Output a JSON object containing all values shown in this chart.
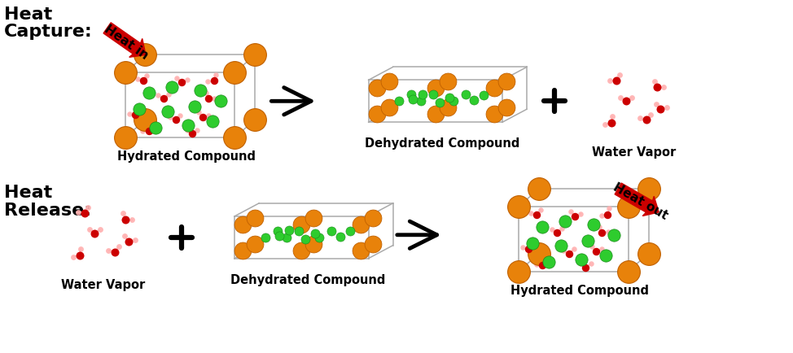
{
  "bg_color": "#ffffff",
  "orange_color": "#E8820A",
  "orange_edge": "#C06000",
  "green_color": "#2ECC2E",
  "green_edge": "#1A8A1A",
  "red_color": "#CC0000",
  "pink_color": "#FFB0B0",
  "pink_line": "#FFB0B0",
  "gray_line": "#AAAAAA",
  "heat_red": "#CC0000",
  "label_fontsize": 10.5,
  "section_fontsize": 16,
  "top_left_label": "Heat\nCapture:",
  "bottom_left_label": "Heat\nRelease:",
  "hydrated_label": "Hydrated Compound",
  "dehydrated_label": "Dehydrated Compound",
  "water_vapor_label": "Water Vapor",
  "heat_in_label": "Heat in",
  "heat_out_label": "Heat out"
}
